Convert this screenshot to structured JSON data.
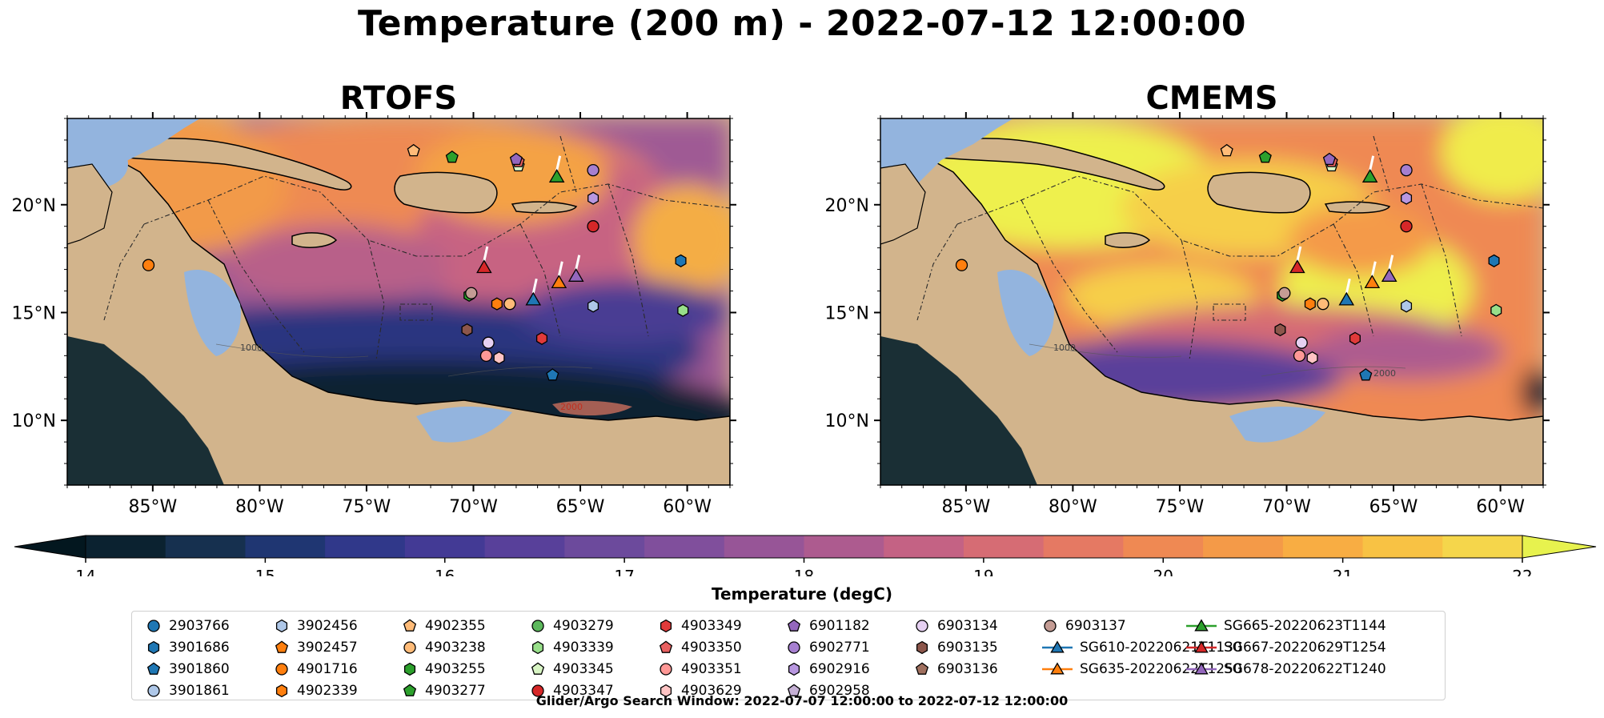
{
  "figure": {
    "title": "Temperature (200 m) - 2022-07-12 12:00:00",
    "footnote": "Glider/Argo Search Window: 2022-07-07 12:00:00 to 2022-07-12 12:00:00"
  },
  "panels": [
    {
      "title": "RTOFS"
    },
    {
      "title": "CMEMS"
    }
  ],
  "map_extent": {
    "lon_min": -89,
    "lon_max": -58,
    "lat_min": 7,
    "lat_max": 24
  },
  "axes": {
    "x_ticks": [
      -85,
      -80,
      -75,
      -70,
      -65,
      -60
    ],
    "x_tick_labels": [
      "85°W",
      "80°W",
      "75°W",
      "70°W",
      "65°W",
      "60°W"
    ],
    "y_ticks": [
      10,
      15,
      20
    ],
    "y_tick_labels": [
      "10°N",
      "15°N",
      "20°N"
    ]
  },
  "contour_labels": [
    "1000",
    "2000"
  ],
  "colorbar": {
    "label": "Temperature (degC)",
    "min": 14,
    "max": 22,
    "step": 0.5,
    "ticks": [
      "14",
      "15",
      "16",
      "17",
      "18",
      "19",
      "20",
      "21",
      "22"
    ],
    "extend": "both",
    "colors": [
      "#0b2230",
      "#16304f",
      "#1f3672",
      "#30388a",
      "#433a95",
      "#58409a",
      "#6c4a9c",
      "#804f9c",
      "#975597",
      "#ad5b8f",
      "#c46284",
      "#d66c74",
      "#e57963",
      "#ef8953",
      "#f49a48",
      "#f8ad43",
      "#f8c244",
      "#f5d64b"
    ],
    "under_color": "#03171f",
    "over_color": "#e7f24e"
  },
  "colors": {
    "land": "#d2b48c",
    "shelf": "#93b4de",
    "river": "#9bb0c8",
    "eez_lines": "#2a2a2a",
    "glider_track": "#ffffff"
  },
  "floats": [
    {
      "id": "2903766",
      "marker": "circle",
      "color": "#1f77b4"
    },
    {
      "id": "3901686",
      "marker": "hexagon",
      "color": "#1f77b4"
    },
    {
      "id": "3901860",
      "marker": "pentagon",
      "color": "#1f77b4"
    },
    {
      "id": "3901861",
      "marker": "circle",
      "color": "#aec7e8"
    },
    {
      "id": "3902456",
      "marker": "hexagon",
      "color": "#aec7e8"
    },
    {
      "id": "3902457",
      "marker": "pentagon",
      "color": "#ff7f0e"
    },
    {
      "id": "4901716",
      "marker": "circle",
      "color": "#ff7f0e"
    },
    {
      "id": "4902339",
      "marker": "hexagon",
      "color": "#ff7f0e"
    },
    {
      "id": "4902355",
      "marker": "pentagon",
      "color": "#ffbb78"
    },
    {
      "id": "4903238",
      "marker": "circle",
      "color": "#ffbb78"
    },
    {
      "id": "4903255",
      "marker": "hexagon",
      "color": "#2ca02c"
    },
    {
      "id": "4903277",
      "marker": "pentagon",
      "color": "#2ca02c"
    },
    {
      "id": "4903279",
      "marker": "circle",
      "color": "#5cb85c"
    },
    {
      "id": "4903339",
      "marker": "hexagon",
      "color": "#98df8a"
    },
    {
      "id": "4903345",
      "marker": "pentagon",
      "color": "#d8f5c4"
    },
    {
      "id": "4903347",
      "marker": "circle",
      "color": "#d62728"
    },
    {
      "id": "4903349",
      "marker": "hexagon",
      "color": "#e03a3a"
    },
    {
      "id": "4903350",
      "marker": "pentagon",
      "color": "#e86060"
    },
    {
      "id": "4903351",
      "marker": "circle",
      "color": "#ff9896"
    },
    {
      "id": "4903629",
      "marker": "hexagon",
      "color": "#ffc4c4"
    },
    {
      "id": "6901182",
      "marker": "pentagon",
      "color": "#9467bd"
    },
    {
      "id": "6902771",
      "marker": "circle",
      "color": "#a67fd0"
    },
    {
      "id": "6902916",
      "marker": "hexagon",
      "color": "#b897e0"
    },
    {
      "id": "6902958",
      "marker": "pentagon",
      "color": "#c5b0d5"
    },
    {
      "id": "6903134",
      "marker": "circle",
      "color": "#e6d0f2"
    },
    {
      "id": "6903135",
      "marker": "hexagon",
      "color": "#8c564b"
    },
    {
      "id": "6903136",
      "marker": "pentagon",
      "color": "#a0705f"
    },
    {
      "id": "6903137",
      "marker": "circle",
      "color": "#c49c94"
    }
  ],
  "gliders": [
    {
      "id": "SG610-20220621T1130",
      "color": "#1f77b4"
    },
    {
      "id": "SG635-20220622T1250",
      "color": "#ff7f0e"
    },
    {
      "id": "SG665-20220623T1144",
      "color": "#2ca02c"
    },
    {
      "id": "SG667-20220629T1254",
      "color": "#d62728"
    },
    {
      "id": "SG678-20220622T1240",
      "color": "#9467bd"
    }
  ],
  "float_positions": [
    {
      "id": "3901686",
      "lon": -60.3,
      "lat": 17.4
    },
    {
      "id": "3902456",
      "lon": -64.4,
      "lat": 15.3
    },
    {
      "id": "4901716",
      "lon": -85.2,
      "lat": 17.2
    },
    {
      "id": "4902339",
      "lon": -68.9,
      "lat": 15.4
    },
    {
      "id": "4902355",
      "lon": -72.8,
      "lat": 22.5
    },
    {
      "id": "4903238",
      "lon": -68.3,
      "lat": 15.4
    },
    {
      "id": "4903255",
      "lon": -70.2,
      "lat": 15.8
    },
    {
      "id": "4903277",
      "lon": -71.0,
      "lat": 22.2
    },
    {
      "id": "4903339",
      "lon": -60.2,
      "lat": 15.1
    },
    {
      "id": "4903345",
      "lon": -67.9,
      "lat": 21.8
    },
    {
      "id": "4903347",
      "lon": -64.4,
      "lat": 19.0
    },
    {
      "id": "4903349",
      "lon": -66.8,
      "lat": 13.8
    },
    {
      "id": "4903350",
      "lon": -67.9,
      "lat": 22.0
    },
    {
      "id": "4903351",
      "lon": -69.4,
      "lat": 13.0
    },
    {
      "id": "4903629",
      "lon": -68.8,
      "lat": 12.9
    },
    {
      "id": "6901182",
      "lon": -68.0,
      "lat": 22.1
    },
    {
      "id": "6902771",
      "lon": -64.4,
      "lat": 21.6
    },
    {
      "id": "6902916",
      "lon": -64.4,
      "lat": 20.3
    },
    {
      "id": "6903134",
      "lon": -69.3,
      "lat": 13.6
    },
    {
      "id": "6903135",
      "lon": -70.3,
      "lat": 14.2
    },
    {
      "id": "6903137",
      "lon": -70.1,
      "lat": 15.9
    },
    {
      "id": "3901860",
      "lon": -66.3,
      "lat": 12.1
    }
  ],
  "glider_positions": [
    {
      "id": "SG610-20220621T1130",
      "lon": -67.2,
      "lat": 15.6
    },
    {
      "id": "SG635-20220622T1250",
      "lon": -66.0,
      "lat": 16.4
    },
    {
      "id": "SG665-20220623T1144",
      "lon": -66.1,
      "lat": 21.3
    },
    {
      "id": "SG667-20220629T1254",
      "lon": -69.5,
      "lat": 17.1
    },
    {
      "id": "SG678-20220622T1240",
      "lon": -65.2,
      "lat": 16.7
    }
  ]
}
